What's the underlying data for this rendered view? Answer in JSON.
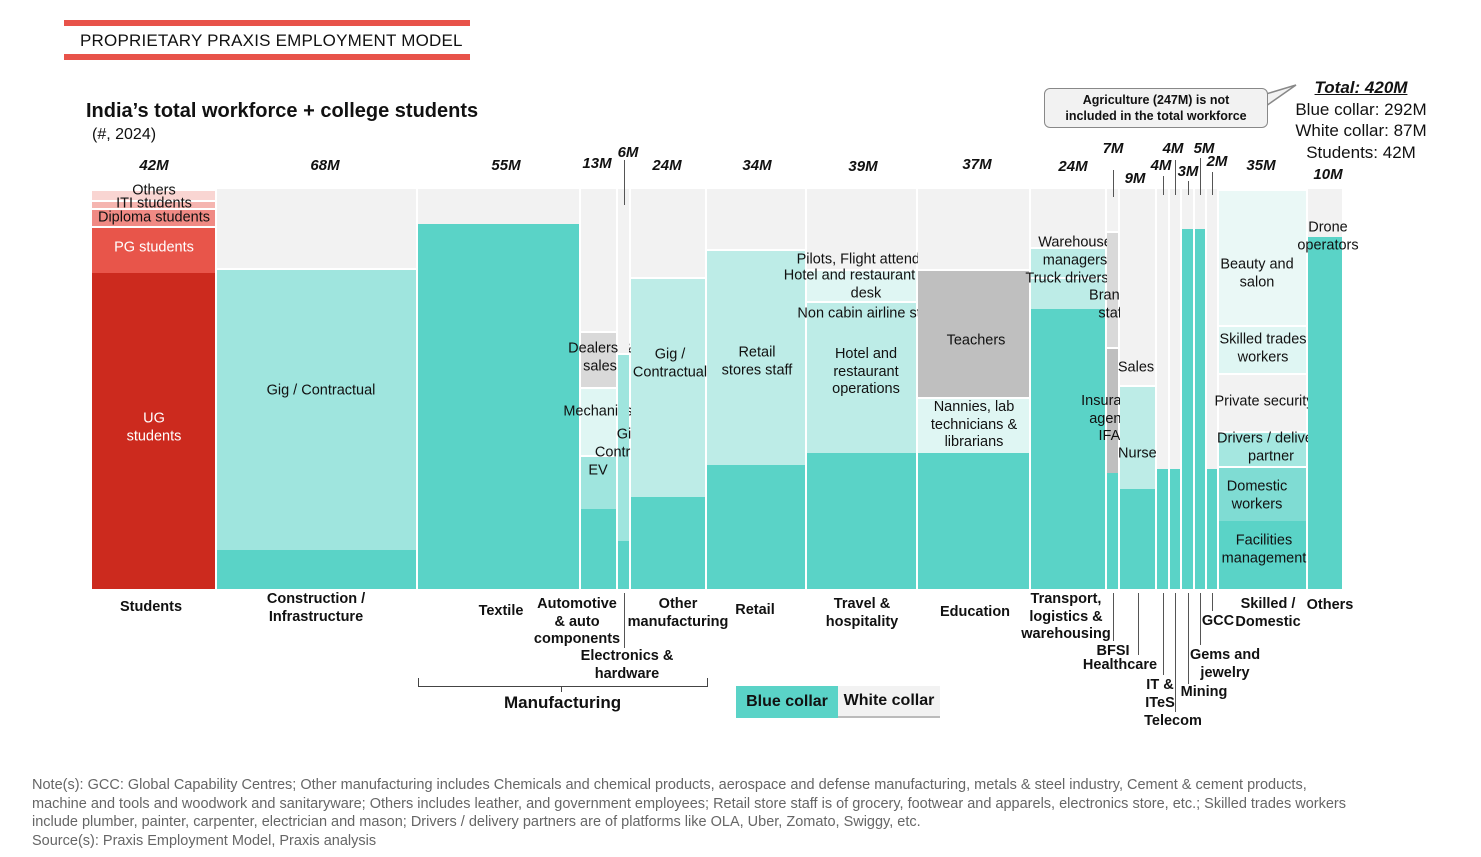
{
  "banner": "PROPRIETARY PRAXIS EMPLOYMENT MODEL",
  "title": "India’s total workforce + college students",
  "subtitle": "(#, 2024)",
  "callout": [
    "Agriculture (247M) is not",
    "included in the total workforce"
  ],
  "totals": {
    "total": "Total: 420M",
    "blue": "Blue collar: 292M",
    "white": "White collar: 87M",
    "students": "Students: 42M"
  },
  "group_label": "Manufacturing",
  "legend": [
    {
      "label": "Blue collar",
      "color": "#5ad3c7"
    },
    {
      "label": "White collar",
      "color": "#f2f2f2"
    }
  ],
  "colors": {
    "blue_collar": "#5ad3c7",
    "white_collar": "#f2f2f2",
    "students": "#cc2a1e"
  },
  "notes": [
    "Note(s): GCC: Global Capability Centres; Other manufacturing includes Chemicals and chemical products, aerospace and defense manufacturing, metals & steel industry, Cement & cement products,",
    "machine and tools and woodwork and sanitaryware; Others includes leather, and government employees; Retail store staff is of grocery, footwear and apparels, electronics store, etc.; Skilled trades workers",
    "include plumber, painter, carpenter, electrician and mason; Drivers / delivery partners are of platforms like OLA, Uber, Zomato, Swiggy, etc.",
    "Source(s): Praxis Employment Model, Praxis analysis"
  ],
  "chart_data": {
    "type": "marimekko",
    "title": "India’s total workforce + college students",
    "subtitle": "(#, 2024)",
    "unit": "M",
    "yrange": [
      0,
      1
    ],
    "columns": [
      {
        "name": "Students",
        "total_label": "42M",
        "total": 42,
        "segments": [
          {
            "label": "UG students",
            "share": 0.79,
            "color": "#cc2a1e"
          },
          {
            "label": "PG students",
            "share": 0.118,
            "color": "#e8554a"
          },
          {
            "label": "Diploma students",
            "share": 0.045,
            "color": "#f08a84"
          },
          {
            "label": "ITI students",
            "share": 0.02,
            "color": "#f5b5b0"
          },
          {
            "label": "Others",
            "share": 0.027,
            "color": "#f9d5d2"
          }
        ]
      },
      {
        "name": "Construction / Infrastructure",
        "total_label": "68M",
        "total": 68,
        "segments": [
          {
            "label": "",
            "share": 0.0975,
            "color": "#5ad3c7"
          },
          {
            "label": "Gig / Contractual",
            "share": 0.705,
            "color": "#9fe5de"
          }
        ]
      },
      {
        "name": "Textile",
        "total_label": "55M",
        "total": 55,
        "segments": [
          {
            "label": "",
            "share": 0.9125,
            "color": "#5ad3c7"
          }
        ]
      },
      {
        "name": "Automotive & auto components",
        "total_label": "13M",
        "total": 13,
        "segments": [
          {
            "label": "",
            "share": 0.2,
            "color": "#5ad3c7"
          },
          {
            "label": "EV",
            "share": 0.135,
            "color": "#9fe5de"
          },
          {
            "label": "Mechanics",
            "share": 0.17,
            "color": "#dff6f3"
          },
          {
            "label": "Dealers & sales",
            "share": 0.14,
            "color": "#d9d9d9"
          }
        ]
      },
      {
        "name": "Electronics & hardware",
        "total_label": "6M",
        "total": 6,
        "segments": [
          {
            "label": "",
            "share": 0.12,
            "color": "#5ad3c7"
          },
          {
            "label": "Gig / Contractual",
            "share": 0.47,
            "color": "#9fe5de"
          }
        ]
      },
      {
        "name": "Other manufacturing",
        "total_label": "24M",
        "total": 24,
        "segments": [
          {
            "label": "",
            "share": 0.23,
            "color": "#5ad3c7"
          },
          {
            "label": "Gig / Contractual",
            "share": 0.55,
            "color": "#bdece7"
          }
        ]
      },
      {
        "name": "Retail",
        "total_label": "34M",
        "total": 34,
        "segments": [
          {
            "label": "",
            "share": 0.31,
            "color": "#5ad3c7"
          },
          {
            "label": "Retail stores staff",
            "share": 0.54,
            "color": "#bdece7"
          }
        ]
      },
      {
        "name": "Travel & hospitality",
        "total_label": "39M",
        "total": 39,
        "segments": [
          {
            "label": "",
            "share": 0.34,
            "color": "#5ad3c7"
          },
          {
            "label": "Hotel and restaurant operations",
            "share": 0.38,
            "color": "#bdece7"
          },
          {
            "label": "Non cabin airline staff",
            "share": 0.0,
            "color": "#bdece7"
          },
          {
            "label": "Hotel and restaurant front desk",
            "share": 0.08,
            "color": "#dff6f3"
          },
          {
            "label": "Pilots, Flight attendants",
            "share": 0.0,
            "color": "#f2f2f2"
          }
        ]
      },
      {
        "name": "Education",
        "total_label": "37M",
        "total": 37,
        "segments": [
          {
            "label": "",
            "share": 0.34,
            "color": "#5ad3c7"
          },
          {
            "label": "Nannies, lab technicians & librarians",
            "share": 0.14,
            "color": "#dff6f3"
          },
          {
            "label": "Teachers",
            "share": 0.32,
            "color": "#bfbfbf"
          }
        ]
      },
      {
        "name": "Transport, logistics & warehousing",
        "total_label": "24M",
        "total": 24,
        "segments": [
          {
            "label": "",
            "share": 0.7,
            "color": "#5ad3c7"
          },
          {
            "label": "Truck drivers",
            "share": 0.08,
            "color": "#bdece7"
          },
          {
            "label": "Warehouse managers",
            "share": 0.075,
            "color": "#bdece7"
          }
        ]
      },
      {
        "name": "BFSI",
        "total_label": "7M",
        "total": 7,
        "segments": [
          {
            "label": "",
            "share": 0.29,
            "color": "#5ad3c7"
          },
          {
            "label": "Insurance agents, IFAs",
            "share": 0.315,
            "color": "#bfbfbf"
          },
          {
            "label": "Branch staff",
            "share": 0.29,
            "color": "#d9d9d9"
          }
        ]
      },
      {
        "name": "Healthcare",
        "total_label": "9M",
        "total": 9,
        "segments": [
          {
            "label": "",
            "share": 0.25,
            "color": "#5ad3c7"
          },
          {
            "label": "Nurses",
            "share": 0.26,
            "color": "#bdece7"
          },
          {
            "label": "Sales",
            "share": 0.0,
            "color": "#e6e6e6"
          }
        ]
      },
      {
        "name": "IT & ITeS",
        "total_label": "4M",
        "total": 4,
        "segments": [
          {
            "label": "",
            "share": 0.3,
            "color": "#5ad3c7"
          }
        ]
      },
      {
        "name": "Telecom",
        "total_label": "4M",
        "total": 4,
        "segments": [
          {
            "label": "",
            "share": 0.3,
            "color": "#5ad3c7"
          }
        ]
      },
      {
        "name": "Mining",
        "total_label": "3M",
        "total": 3,
        "segments": [
          {
            "label": "",
            "share": 0.9,
            "color": "#5ad3c7"
          }
        ]
      },
      {
        "name": "Gems and jewelry",
        "total_label": "5M",
        "total": 5,
        "segments": [
          {
            "label": "",
            "share": 0.9,
            "color": "#5ad3c7"
          }
        ]
      },
      {
        "name": "GCC",
        "total_label": "2M",
        "total": 2,
        "segments": [
          {
            "label": "",
            "share": 0.3,
            "color": "#5ad3c7"
          }
        ]
      },
      {
        "name": "Skilled / Domestic",
        "total_label": "35M",
        "total": 35,
        "segments": [
          {
            "label": "Facilities management",
            "share": 0.17,
            "color": "#5ad3c7"
          },
          {
            "label": "Domestic workers",
            "share": 0.1375,
            "color": "#7fdcd3"
          },
          {
            "label": "Drivers / delivery partner",
            "share": 0.0875,
            "color": "#a5e7e0"
          },
          {
            "label": "Private security",
            "share": 0.145,
            "color": "#f2f2f2"
          },
          {
            "label": "Skilled trades workers",
            "share": 0.12,
            "color": "#dff6f3"
          },
          {
            "label": "Beauty and salon",
            "share": 0.34,
            "color": "#eaf8f6"
          }
        ]
      },
      {
        "name": "Others",
        "total_label": "10M",
        "total": 10,
        "segments": [
          {
            "label": "",
            "share": 0.88,
            "color": "#5ad3c7"
          },
          {
            "label": "Drone operators",
            "share": 0.0,
            "color": "#f2f2f2"
          }
        ]
      }
    ]
  }
}
